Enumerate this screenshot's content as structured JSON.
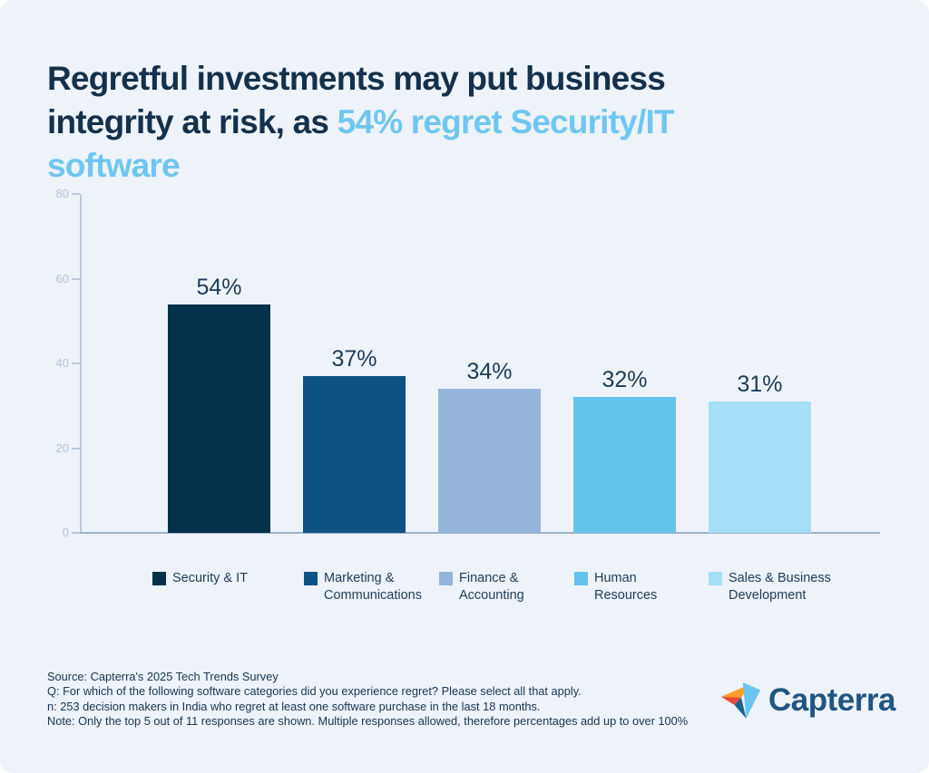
{
  "title": {
    "line1_dark": "Regretful investments may put business",
    "line2_dark": "integrity at risk, as ",
    "line2_highlight": "54% regret Security/IT",
    "line3_highlight": "software",
    "dark_color": "#14304b",
    "highlight_color": "#6fc6f0"
  },
  "chart_data": {
    "type": "bar",
    "categories": [
      "Security & IT",
      "Marketing & Communications",
      "Finance & Accounting",
      "Human Resources",
      "Sales & Business Development"
    ],
    "values": [
      54,
      37,
      34,
      32,
      31
    ],
    "value_labels": [
      "54%",
      "37%",
      "34%",
      "32%",
      "31%"
    ],
    "bar_colors": [
      "#053049",
      "#0e5285",
      "#94b5d9",
      "#63c3ed",
      "#a5def7"
    ],
    "title": "Regretful investments may put business integrity at risk, as 54% regret Security/IT software",
    "xlabel": "",
    "ylabel": "",
    "ylim": [
      0,
      80
    ],
    "yticks": [
      0,
      20,
      40,
      60,
      80
    ],
    "grid": false,
    "legend_position": "bottom"
  },
  "legend": {
    "items": [
      {
        "label": "Security & IT",
        "color": "#053049"
      },
      {
        "label": "Marketing &\nCommunications",
        "color": "#0e5285"
      },
      {
        "label": "Finance &\nAccounting",
        "color": "#94b5d9"
      },
      {
        "label": "Human\nResources",
        "color": "#63c3ed"
      },
      {
        "label": "Sales & Business\nDevelopment",
        "color": "#a5def7"
      }
    ]
  },
  "footnotes": {
    "source": "Source: Capterra's 2025 Tech Trends Survey",
    "question": "Q: For which of the following software categories did you experience regret? Please select all that apply.",
    "sample": "n: 253 decision makers in India who regret at least one software purchase in the last 18 months.",
    "note": "Note: Only the top 5 out of 11 responses are shown. Multiple responses allowed, therefore percentages add up to over 100%"
  },
  "branding": {
    "logo_text": "Capterra",
    "logo_mark": "capterra-arrow-icon",
    "logo_colors": {
      "orange": "#ff9d28",
      "red": "#e54937",
      "light_blue": "#68c5ed",
      "dark_blue": "#17628f",
      "text": "#205483"
    }
  },
  "page": {
    "background": "#eef3f9",
    "axis_color": "#b7c9dd",
    "baseline_color": "#9cb0cc",
    "tick_label_color": "#b3c3d8"
  }
}
